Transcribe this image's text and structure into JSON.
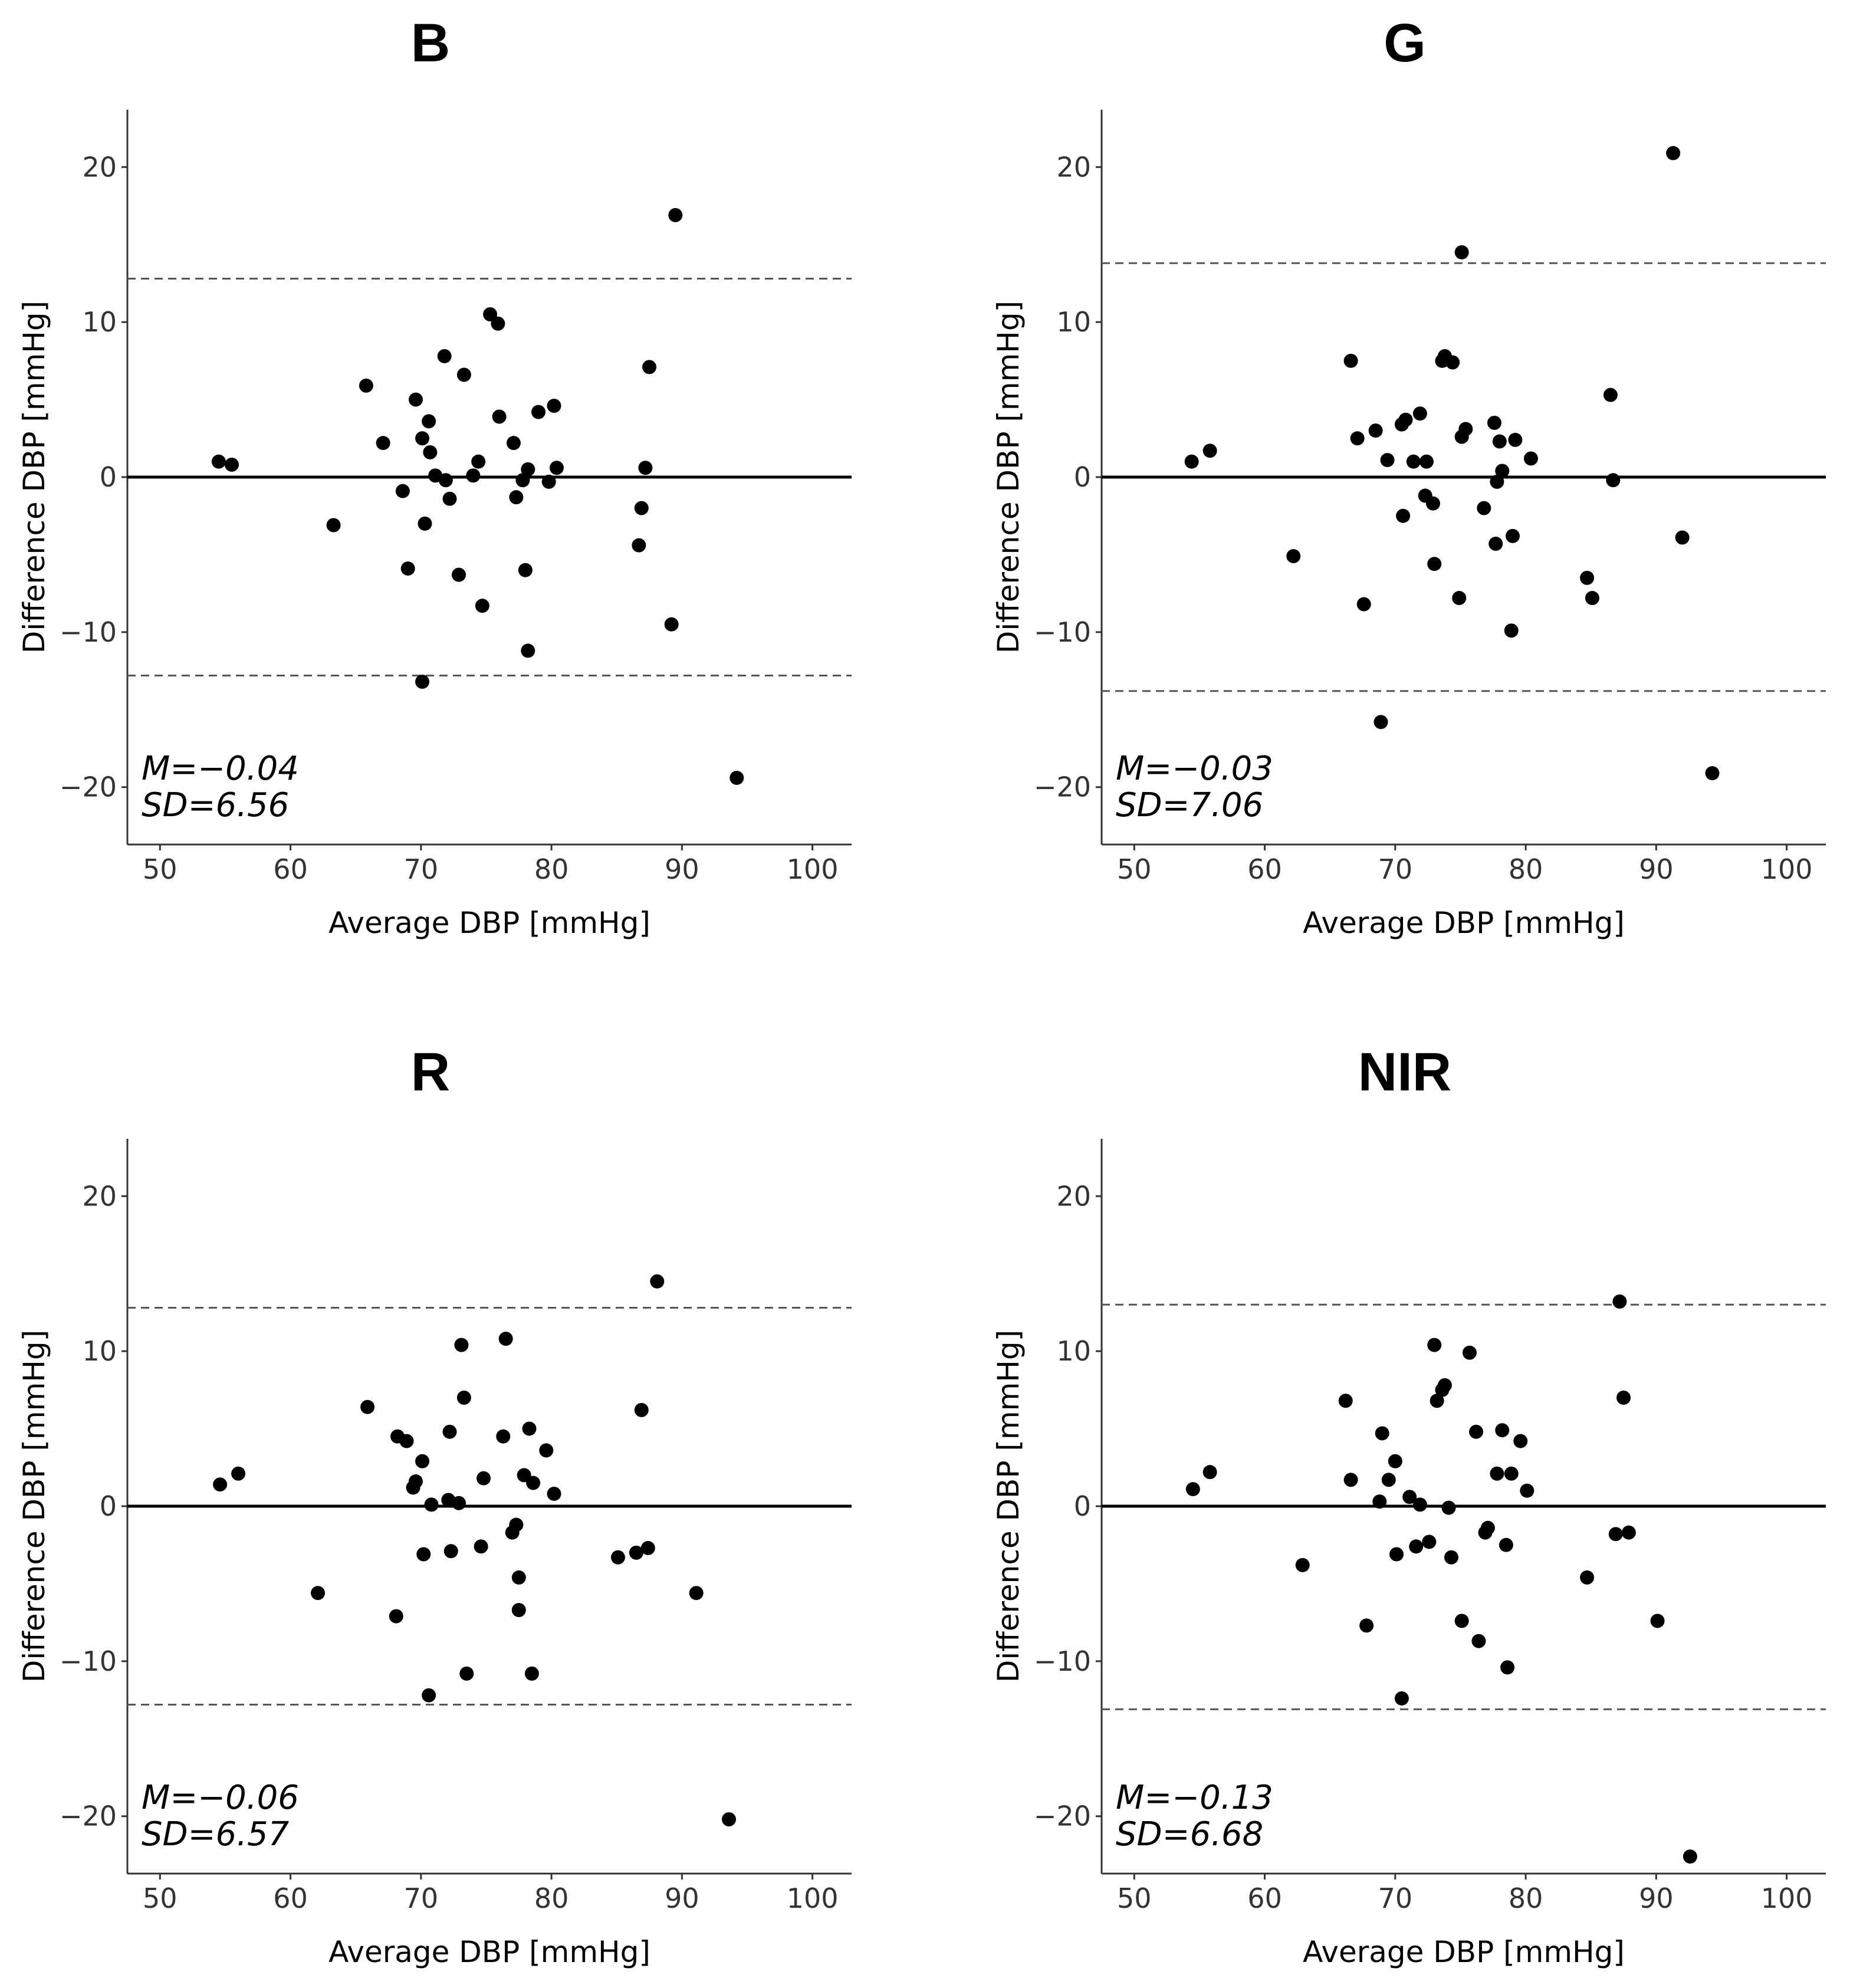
{
  "chart_data": [
    {
      "type": "scatter",
      "title": "B",
      "xlabel": "Average DBP [mmHg]",
      "ylabel": "Difference DBP [mmHg]",
      "xlim": [
        47.5,
        103
      ],
      "ylim": [
        -23.7,
        23.7
      ],
      "xticks": [
        50,
        60,
        70,
        80,
        90,
        100
      ],
      "yticks": [
        -20,
        -10,
        0,
        10,
        20
      ],
      "mean_line": 0,
      "loa": [
        12.8,
        -12.8
      ],
      "stats": {
        "mean": "M=−0.04",
        "sd": "SD=6.56"
      },
      "points": [
        [
          54.5,
          1.0
        ],
        [
          55.5,
          0.8
        ],
        [
          63.3,
          -3.1
        ],
        [
          65.8,
          5.9
        ],
        [
          67.1,
          2.2
        ],
        [
          68.6,
          -0.9
        ],
        [
          69.0,
          -5.9
        ],
        [
          69.6,
          5.0
        ],
        [
          70.1,
          2.5
        ],
        [
          70.3,
          -3.0
        ],
        [
          70.6,
          3.6
        ],
        [
          70.7,
          1.6
        ],
        [
          71.1,
          0.1
        ],
        [
          71.8,
          7.8
        ],
        [
          71.9,
          -0.2
        ],
        [
          72.2,
          -1.4
        ],
        [
          72.9,
          -6.3
        ],
        [
          73.3,
          6.6
        ],
        [
          74.0,
          0.1
        ],
        [
          74.4,
          1.0
        ],
        [
          74.7,
          -8.3
        ],
        [
          75.3,
          10.5
        ],
        [
          75.9,
          9.9
        ],
        [
          76.0,
          3.9
        ],
        [
          77.1,
          2.2
        ],
        [
          77.3,
          -1.3
        ],
        [
          77.8,
          -0.2
        ],
        [
          78.0,
          -6.0
        ],
        [
          78.2,
          -11.2
        ],
        [
          78.2,
          0.5
        ],
        [
          79.0,
          4.2
        ],
        [
          79.8,
          -0.3
        ],
        [
          80.2,
          4.6
        ],
        [
          80.4,
          0.6
        ],
        [
          86.7,
          -4.4
        ],
        [
          86.9,
          -2.0
        ],
        [
          87.2,
          0.6
        ],
        [
          87.5,
          7.1
        ],
        [
          89.2,
          -9.5
        ],
        [
          89.5,
          16.9
        ],
        [
          94.2,
          -19.4
        ],
        [
          70.1,
          -13.2
        ]
      ]
    },
    {
      "type": "scatter",
      "title": "G",
      "xlabel": "Average DBP [mmHg]",
      "ylabel": "Difference DBP [mmHg]",
      "xlim": [
        47.5,
        103
      ],
      "ylim": [
        -23.7,
        23.7
      ],
      "xticks": [
        50,
        60,
        70,
        80,
        90,
        100
      ],
      "yticks": [
        -20,
        -10,
        0,
        10,
        20
      ],
      "mean_line": 0,
      "loa": [
        13.8,
        -13.8
      ],
      "stats": {
        "mean": "M=−0.03",
        "sd": "SD=7.06"
      },
      "points": [
        [
          54.4,
          1.0
        ],
        [
          55.8,
          1.7
        ],
        [
          62.2,
          -5.1
        ],
        [
          66.6,
          7.5
        ],
        [
          67.1,
          2.5
        ],
        [
          67.6,
          -8.2
        ],
        [
          68.5,
          3.0
        ],
        [
          68.9,
          -15.8
        ],
        [
          69.4,
          1.1
        ],
        [
          70.5,
          3.4
        ],
        [
          70.6,
          -2.5
        ],
        [
          70.8,
          3.7
        ],
        [
          71.4,
          1.0
        ],
        [
          71.9,
          4.1
        ],
        [
          72.3,
          -1.2
        ],
        [
          72.4,
          1.0
        ],
        [
          72.9,
          -1.7
        ],
        [
          73.0,
          -5.6
        ],
        [
          73.6,
          7.5
        ],
        [
          73.8,
          7.8
        ],
        [
          74.4,
          7.4
        ],
        [
          74.9,
          -7.8
        ],
        [
          75.1,
          14.5
        ],
        [
          75.1,
          2.6
        ],
        [
          75.4,
          3.1
        ],
        [
          76.8,
          -2.0
        ],
        [
          77.6,
          3.5
        ],
        [
          77.7,
          -4.3
        ],
        [
          77.8,
          -0.3
        ],
        [
          78.0,
          2.3
        ],
        [
          78.2,
          0.4
        ],
        [
          78.9,
          -9.9
        ],
        [
          79.0,
          -3.8
        ],
        [
          79.2,
          2.4
        ],
        [
          80.4,
          1.2
        ],
        [
          84.7,
          -6.5
        ],
        [
          85.1,
          -7.8
        ],
        [
          86.5,
          5.3
        ],
        [
          86.7,
          -0.2
        ],
        [
          91.3,
          20.9
        ],
        [
          92.0,
          -3.9
        ],
        [
          94.3,
          -19.1
        ]
      ]
    },
    {
      "type": "scatter",
      "title": "R",
      "xlabel": "Average DBP [mmHg]",
      "ylabel": "Difference DBP [mmHg]",
      "xlim": [
        47.5,
        103
      ],
      "ylim": [
        -23.7,
        23.7
      ],
      "xticks": [
        50,
        60,
        70,
        80,
        90,
        100
      ],
      "yticks": [
        -20,
        -10,
        0,
        10,
        20
      ],
      "mean_line": 0,
      "loa": [
        12.8,
        -12.8
      ],
      "stats": {
        "mean": "M=−0.06",
        "sd": "SD=6.57"
      },
      "points": [
        [
          54.6,
          1.4
        ],
        [
          56.0,
          2.1
        ],
        [
          62.1,
          -5.6
        ],
        [
          65.9,
          6.4
        ],
        [
          68.1,
          -7.1
        ],
        [
          68.2,
          4.5
        ],
        [
          68.9,
          4.2
        ],
        [
          69.4,
          1.2
        ],
        [
          69.6,
          1.6
        ],
        [
          70.1,
          2.9
        ],
        [
          70.2,
          -3.1
        ],
        [
          70.6,
          -12.2
        ],
        [
          70.8,
          0.1
        ],
        [
          72.1,
          0.4
        ],
        [
          72.2,
          4.8
        ],
        [
          72.3,
          -2.9
        ],
        [
          72.9,
          0.2
        ],
        [
          73.1,
          10.4
        ],
        [
          73.3,
          7.0
        ],
        [
          73.5,
          -10.8
        ],
        [
          74.6,
          -2.6
        ],
        [
          74.8,
          1.8
        ],
        [
          76.3,
          4.5
        ],
        [
          76.5,
          10.8
        ],
        [
          77.0,
          -1.7
        ],
        [
          77.3,
          -1.2
        ],
        [
          77.5,
          -4.6
        ],
        [
          77.5,
          -6.7
        ],
        [
          77.9,
          2.0
        ],
        [
          78.3,
          5.0
        ],
        [
          78.5,
          -10.8
        ],
        [
          78.6,
          1.5
        ],
        [
          79.6,
          3.6
        ],
        [
          80.2,
          0.8
        ],
        [
          85.1,
          -3.3
        ],
        [
          86.5,
          -3.0
        ],
        [
          86.9,
          6.2
        ],
        [
          87.4,
          -2.7
        ],
        [
          88.1,
          14.5
        ],
        [
          91.1,
          -5.6
        ],
        [
          93.6,
          -20.2
        ]
      ]
    },
    {
      "type": "scatter",
      "title": "NIR",
      "xlabel": "Average DBP [mmHg]",
      "ylabel": "Difference DBP [mmHg]",
      "xlim": [
        47.5,
        103
      ],
      "ylim": [
        -23.7,
        23.7
      ],
      "xticks": [
        50,
        60,
        70,
        80,
        90,
        100
      ],
      "yticks": [
        -20,
        -10,
        0,
        10,
        20
      ],
      "mean_line": 0,
      "loa": [
        13.0,
        -13.1
      ],
      "stats": {
        "mean": "M=−0.13",
        "sd": "SD=6.68"
      },
      "points": [
        [
          54.5,
          1.1
        ],
        [
          55.8,
          2.2
        ],
        [
          62.9,
          -3.8
        ],
        [
          66.2,
          6.8
        ],
        [
          66.6,
          1.7
        ],
        [
          67.8,
          -7.7
        ],
        [
          68.8,
          0.3
        ],
        [
          69.0,
          4.7
        ],
        [
          69.5,
          1.7
        ],
        [
          70.0,
          2.9
        ],
        [
          70.1,
          -3.1
        ],
        [
          70.5,
          -12.4
        ],
        [
          71.1,
          0.6
        ],
        [
          71.6,
          -2.6
        ],
        [
          71.9,
          0.1
        ],
        [
          72.6,
          -2.3
        ],
        [
          73.0,
          10.4
        ],
        [
          73.2,
          6.8
        ],
        [
          73.6,
          7.5
        ],
        [
          73.8,
          7.8
        ],
        [
          74.1,
          -0.1
        ],
        [
          74.3,
          -3.3
        ],
        [
          75.1,
          -7.4
        ],
        [
          75.7,
          9.9
        ],
        [
          76.2,
          4.8
        ],
        [
          76.4,
          -8.7
        ],
        [
          76.9,
          -1.7
        ],
        [
          77.1,
          -1.4
        ],
        [
          77.8,
          2.1
        ],
        [
          78.2,
          4.9
        ],
        [
          78.5,
          -2.5
        ],
        [
          78.6,
          -10.4
        ],
        [
          78.9,
          2.1
        ],
        [
          79.6,
          4.2
        ],
        [
          80.1,
          1.0
        ],
        [
          84.7,
          -4.6
        ],
        [
          86.9,
          -1.8
        ],
        [
          87.2,
          13.2
        ],
        [
          87.5,
          7.0
        ],
        [
          87.9,
          -1.7
        ],
        [
          90.1,
          -7.4
        ],
        [
          92.6,
          -22.6
        ]
      ]
    }
  ]
}
